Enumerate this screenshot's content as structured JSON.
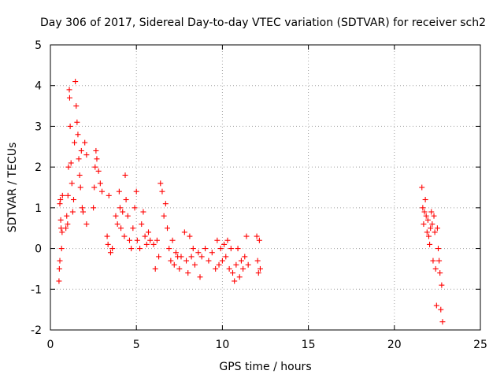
{
  "chart_data": {
    "type": "scatter",
    "title": "Day 306 of 2017, Sidereal Day-to-day VTEC variation (SDTVAR) for receiver sch2",
    "xlabel": "GPS time / hours",
    "ylabel": "SDTVAR / TECUs",
    "xlim": [
      0,
      25
    ],
    "ylim": [
      -2,
      5
    ],
    "x_ticks": [
      "0",
      "5",
      "10",
      "15",
      "20",
      "25"
    ],
    "y_ticks": [
      "-2",
      "-1",
      "0",
      "1",
      "2",
      "3",
      "4",
      "5"
    ],
    "grid": true,
    "marker": "plus",
    "color": "#ff0000",
    "series": [
      {
        "name": "SDTVAR",
        "points": [
          [
            0.5,
            -0.8
          ],
          [
            0.52,
            -0.5
          ],
          [
            0.55,
            -0.3
          ],
          [
            0.55,
            1.1
          ],
          [
            0.58,
            1.2
          ],
          [
            0.6,
            0.7
          ],
          [
            0.62,
            0.5
          ],
          [
            0.65,
            0.0
          ],
          [
            0.68,
            0.4
          ],
          [
            0.7,
            1.3
          ],
          [
            0.9,
            0.5
          ],
          [
            0.95,
            0.8
          ],
          [
            1.0,
            0.6
          ],
          [
            1.02,
            1.3
          ],
          [
            1.05,
            2.0
          ],
          [
            1.1,
            3.9
          ],
          [
            1.12,
            3.7
          ],
          [
            1.15,
            3.0
          ],
          [
            1.2,
            2.1
          ],
          [
            1.25,
            1.6
          ],
          [
            1.3,
            0.9
          ],
          [
            1.35,
            1.2
          ],
          [
            1.4,
            2.6
          ],
          [
            1.45,
            4.1
          ],
          [
            1.5,
            3.5
          ],
          [
            1.55,
            3.1
          ],
          [
            1.6,
            2.8
          ],
          [
            1.65,
            2.2
          ],
          [
            1.7,
            1.8
          ],
          [
            1.75,
            1.5
          ],
          [
            1.8,
            2.4
          ],
          [
            1.85,
            1.0
          ],
          [
            1.9,
            0.9
          ],
          [
            2.0,
            2.6
          ],
          [
            2.1,
            2.3
          ],
          [
            2.1,
            0.6
          ],
          [
            2.5,
            1.0
          ],
          [
            2.55,
            1.5
          ],
          [
            2.6,
            2.0
          ],
          [
            2.65,
            2.4
          ],
          [
            2.7,
            2.2
          ],
          [
            2.8,
            1.9
          ],
          [
            2.9,
            1.6
          ],
          [
            3.0,
            1.4
          ],
          [
            3.3,
            0.3
          ],
          [
            3.35,
            0.1
          ],
          [
            3.4,
            1.3
          ],
          [
            3.5,
            -0.1
          ],
          [
            3.6,
            0.0
          ],
          [
            3.8,
            0.8
          ],
          [
            3.9,
            0.6
          ],
          [
            4.0,
            1.4
          ],
          [
            4.05,
            1.0
          ],
          [
            4.1,
            0.5
          ],
          [
            4.2,
            0.9
          ],
          [
            4.3,
            0.3
          ],
          [
            4.35,
            1.8
          ],
          [
            4.4,
            1.2
          ],
          [
            4.5,
            0.8
          ],
          [
            4.6,
            0.2
          ],
          [
            4.7,
            0.0
          ],
          [
            4.8,
            0.5
          ],
          [
            4.9,
            1.0
          ],
          [
            5.0,
            1.4
          ],
          [
            5.05,
            0.2
          ],
          [
            5.2,
            0.0
          ],
          [
            5.3,
            0.6
          ],
          [
            5.4,
            0.9
          ],
          [
            5.5,
            0.3
          ],
          [
            5.6,
            0.1
          ],
          [
            5.7,
            0.4
          ],
          [
            5.8,
            0.2
          ],
          [
            6.0,
            0.1
          ],
          [
            6.1,
            -0.5
          ],
          [
            6.2,
            0.2
          ],
          [
            6.3,
            -0.2
          ],
          [
            6.4,
            1.6
          ],
          [
            6.5,
            1.4
          ],
          [
            6.6,
            0.8
          ],
          [
            6.7,
            1.1
          ],
          [
            6.8,
            0.5
          ],
          [
            6.9,
            0.0
          ],
          [
            7.0,
            -0.3
          ],
          [
            7.1,
            0.2
          ],
          [
            7.2,
            -0.4
          ],
          [
            7.3,
            -0.1
          ],
          [
            7.4,
            -0.2
          ],
          [
            7.5,
            -0.5
          ],
          [
            7.6,
            -0.2
          ],
          [
            7.8,
            0.4
          ],
          [
            7.9,
            -0.3
          ],
          [
            8.0,
            -0.6
          ],
          [
            8.1,
            0.3
          ],
          [
            8.2,
            -0.2
          ],
          [
            8.3,
            0.0
          ],
          [
            8.4,
            -0.4
          ],
          [
            8.6,
            -0.1
          ],
          [
            8.7,
            -0.7
          ],
          [
            8.8,
            -0.2
          ],
          [
            9.0,
            0.0
          ],
          [
            9.2,
            -0.3
          ],
          [
            9.4,
            -0.1
          ],
          [
            9.6,
            -0.5
          ],
          [
            9.7,
            0.2
          ],
          [
            9.8,
            -0.4
          ],
          [
            9.9,
            0.0
          ],
          [
            10.0,
            -0.3
          ],
          [
            10.1,
            0.1
          ],
          [
            10.2,
            -0.2
          ],
          [
            10.3,
            0.2
          ],
          [
            10.4,
            -0.5
          ],
          [
            10.5,
            0.0
          ],
          [
            10.6,
            -0.6
          ],
          [
            10.7,
            -0.8
          ],
          [
            10.8,
            -0.4
          ],
          [
            10.9,
            0.0
          ],
          [
            11.0,
            -0.7
          ],
          [
            11.1,
            -0.3
          ],
          [
            11.2,
            -0.5
          ],
          [
            11.3,
            -0.2
          ],
          [
            11.4,
            0.3
          ],
          [
            11.5,
            -0.4
          ],
          [
            12.0,
            0.3
          ],
          [
            12.05,
            -0.3
          ],
          [
            12.1,
            -0.6
          ],
          [
            12.15,
            0.2
          ],
          [
            12.2,
            -0.5
          ],
          [
            21.6,
            1.5
          ],
          [
            21.65,
            1.0
          ],
          [
            21.7,
            0.6
          ],
          [
            21.75,
            0.9
          ],
          [
            21.8,
            1.2
          ],
          [
            21.85,
            0.8
          ],
          [
            21.9,
            0.4
          ],
          [
            21.95,
            0.7
          ],
          [
            22.0,
            0.3
          ],
          [
            22.05,
            0.1
          ],
          [
            22.1,
            0.5
          ],
          [
            22.15,
            0.9
          ],
          [
            22.2,
            0.6
          ],
          [
            22.25,
            -0.3
          ],
          [
            22.3,
            0.8
          ],
          [
            22.35,
            0.4
          ],
          [
            22.4,
            -0.5
          ],
          [
            22.45,
            -1.4
          ],
          [
            22.5,
            0.5
          ],
          [
            22.55,
            0.0
          ],
          [
            22.6,
            -0.3
          ],
          [
            22.65,
            -0.6
          ],
          [
            22.7,
            -1.5
          ],
          [
            22.75,
            -0.9
          ],
          [
            22.8,
            -1.8
          ]
        ]
      }
    ]
  }
}
